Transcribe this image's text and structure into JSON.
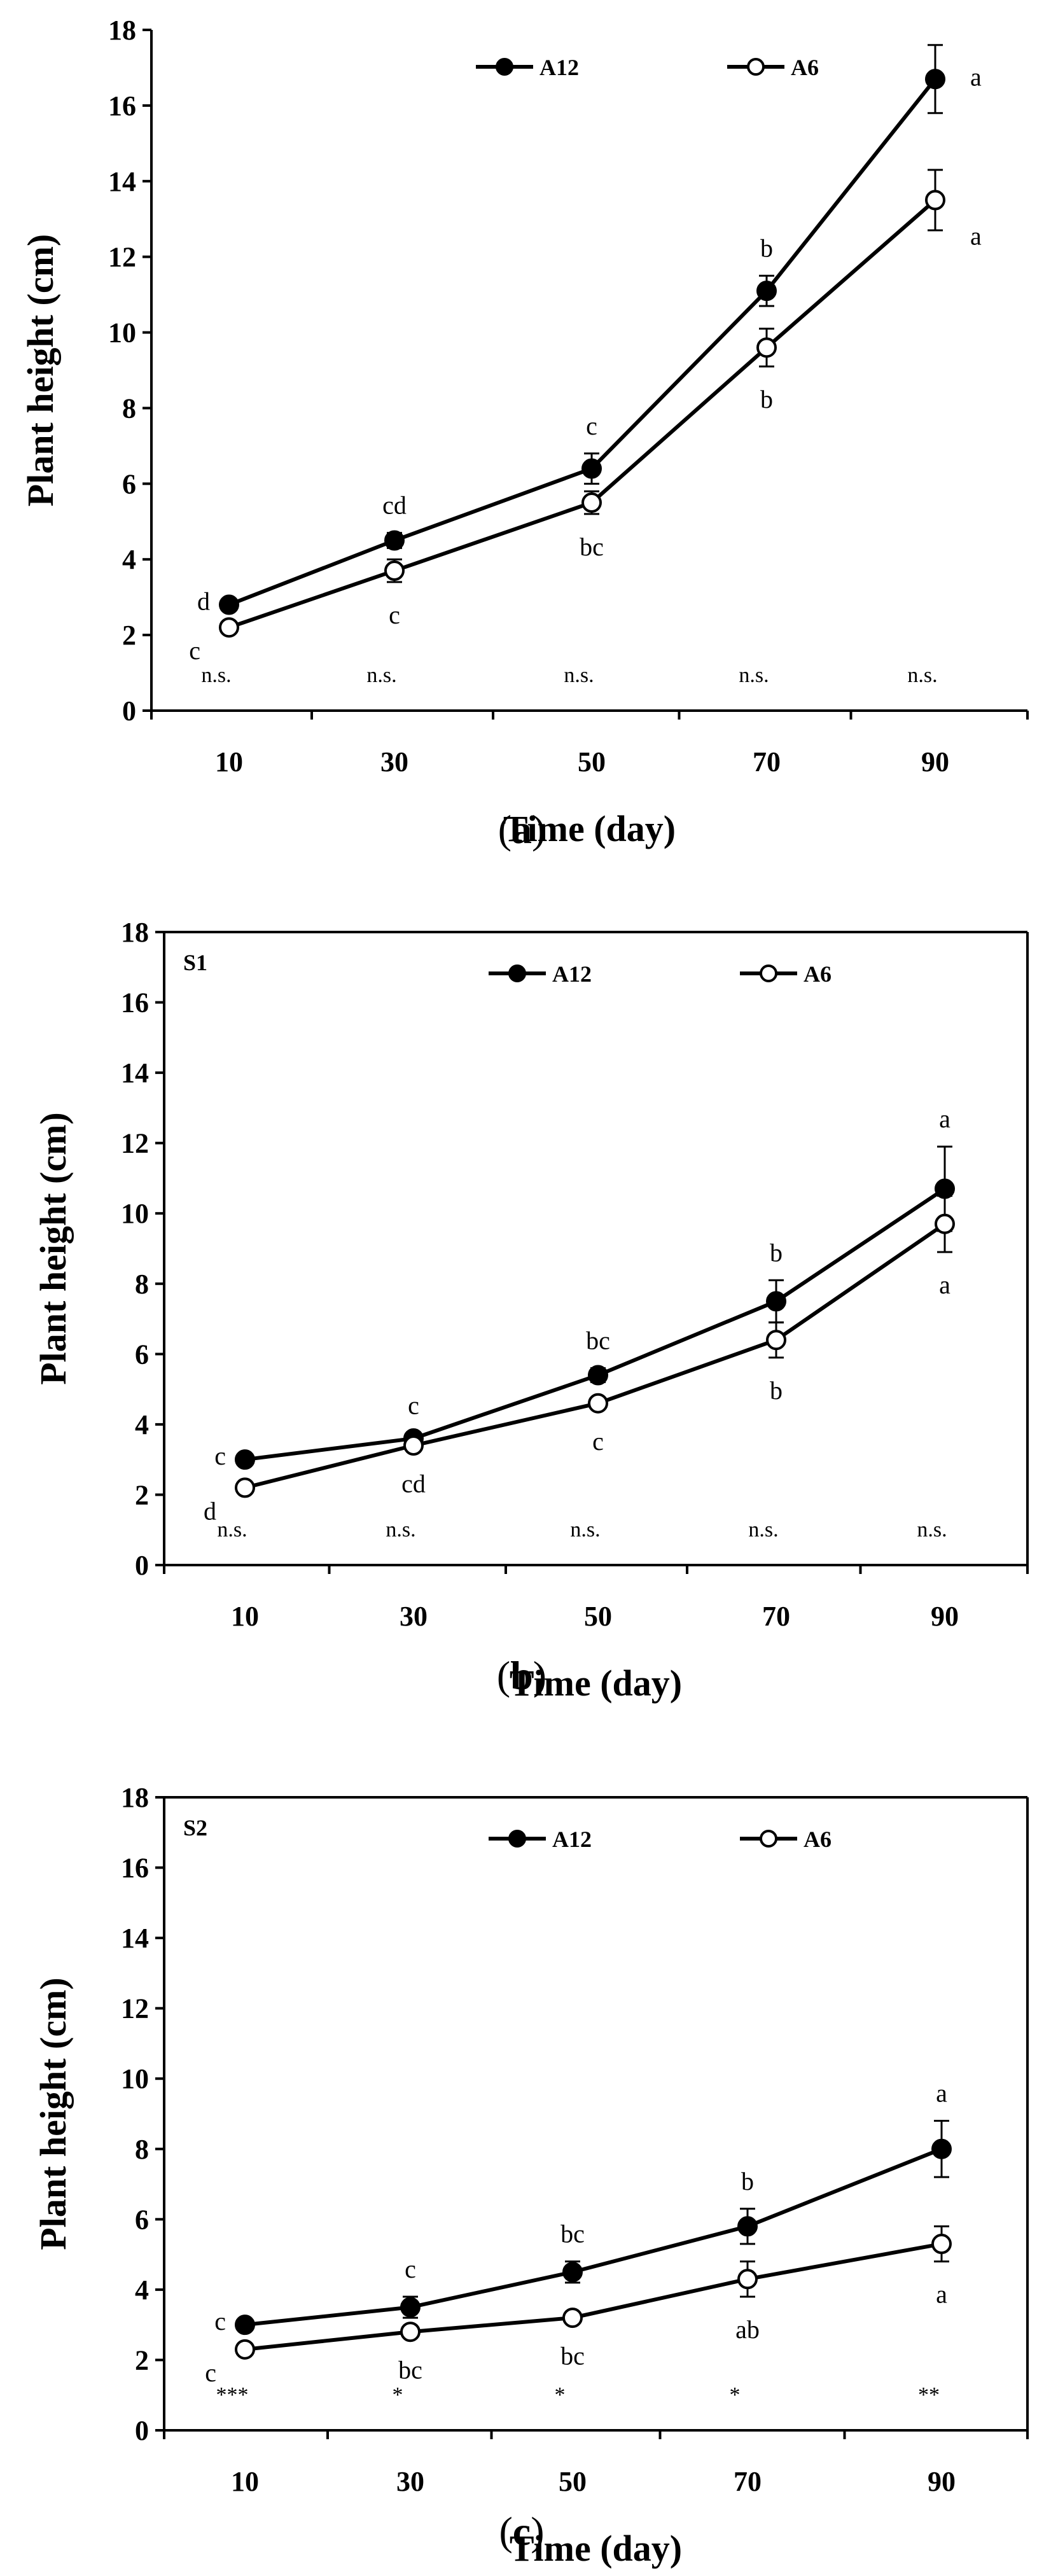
{
  "chart_data": [
    {
      "type": "line",
      "caption_letter": "a",
      "panel_label": "",
      "xlabel": "Time (day)",
      "ylabel": "Plant height (cm)",
      "ylim": [
        0,
        18
      ],
      "y_ticks": [
        0,
        2,
        4,
        6,
        8,
        10,
        12,
        14,
        16,
        18
      ],
      "x": [
        10,
        30,
        50,
        70,
        90
      ],
      "legend_position": "top-center",
      "series": [
        {
          "name": "A12",
          "marker": "filled-circle",
          "values": [
            2.8,
            4.5,
            6.4,
            11.1,
            16.7
          ],
          "errors": [
            0.15,
            0.2,
            0.4,
            0.4,
            0.9
          ],
          "letters": [
            "d",
            "cd",
            "c",
            "b",
            "a"
          ]
        },
        {
          "name": "A6",
          "marker": "open-circle",
          "values": [
            2.2,
            3.7,
            5.5,
            9.6,
            13.5
          ],
          "errors": [
            0.15,
            0.3,
            0.3,
            0.5,
            0.8
          ],
          "letters": [
            "c",
            "c",
            "bc",
            "b",
            "a"
          ]
        }
      ],
      "significance": [
        "n.s.",
        "n.s.",
        "n.s.",
        "n.s.",
        "n.s."
      ]
    },
    {
      "type": "line",
      "caption_letter": "b",
      "panel_label": "S1",
      "xlabel": "Time (day)",
      "ylabel": "Plant height (cm)",
      "ylim": [
        0,
        18
      ],
      "y_ticks": [
        0,
        2,
        4,
        6,
        8,
        10,
        12,
        14,
        16,
        18
      ],
      "x": [
        10,
        30,
        50,
        70,
        90
      ],
      "legend_position": "top-center",
      "series": [
        {
          "name": "A12",
          "marker": "filled-circle",
          "values": [
            3.0,
            3.6,
            5.4,
            7.5,
            10.7
          ],
          "errors": [
            0.1,
            0.15,
            0.2,
            0.6,
            1.2
          ],
          "letters": [
            "c",
            "c",
            "bc",
            "b",
            "a"
          ]
        },
        {
          "name": "A6",
          "marker": "open-circle",
          "values": [
            2.2,
            3.4,
            4.6,
            6.4,
            9.7
          ],
          "errors": [
            0.1,
            0.15,
            0.15,
            0.5,
            0.8
          ],
          "letters": [
            "d",
            "cd",
            "c",
            "b",
            "a"
          ]
        }
      ],
      "significance": [
        "n.s.",
        "n.s.",
        "n.s.",
        "n.s.",
        "n.s."
      ]
    },
    {
      "type": "line",
      "caption_letter": "c",
      "panel_label": "S2",
      "xlabel": "Time (day)",
      "ylabel": "Plant height (cm)",
      "ylim": [
        0,
        18
      ],
      "y_ticks": [
        0,
        2,
        4,
        6,
        8,
        10,
        12,
        14,
        16,
        18
      ],
      "x": [
        10,
        30,
        50,
        70,
        90
      ],
      "legend_position": "top-center",
      "series": [
        {
          "name": "A12",
          "marker": "filled-circle",
          "values": [
            3.0,
            3.5,
            4.5,
            5.8,
            8.0
          ],
          "errors": [
            0.1,
            0.3,
            0.3,
            0.5,
            0.8
          ],
          "letters": [
            "c",
            "c",
            "bc",
            "b",
            "a"
          ]
        },
        {
          "name": "A6",
          "marker": "open-circle",
          "values": [
            2.3,
            2.8,
            3.2,
            4.3,
            5.3
          ],
          "errors": [
            0.1,
            0.15,
            0.15,
            0.5,
            0.5
          ],
          "letters": [
            "c",
            "bc",
            "bc",
            "ab",
            "a"
          ]
        }
      ],
      "significance": [
        "***",
        "*",
        "*",
        "*",
        "**"
      ]
    }
  ]
}
